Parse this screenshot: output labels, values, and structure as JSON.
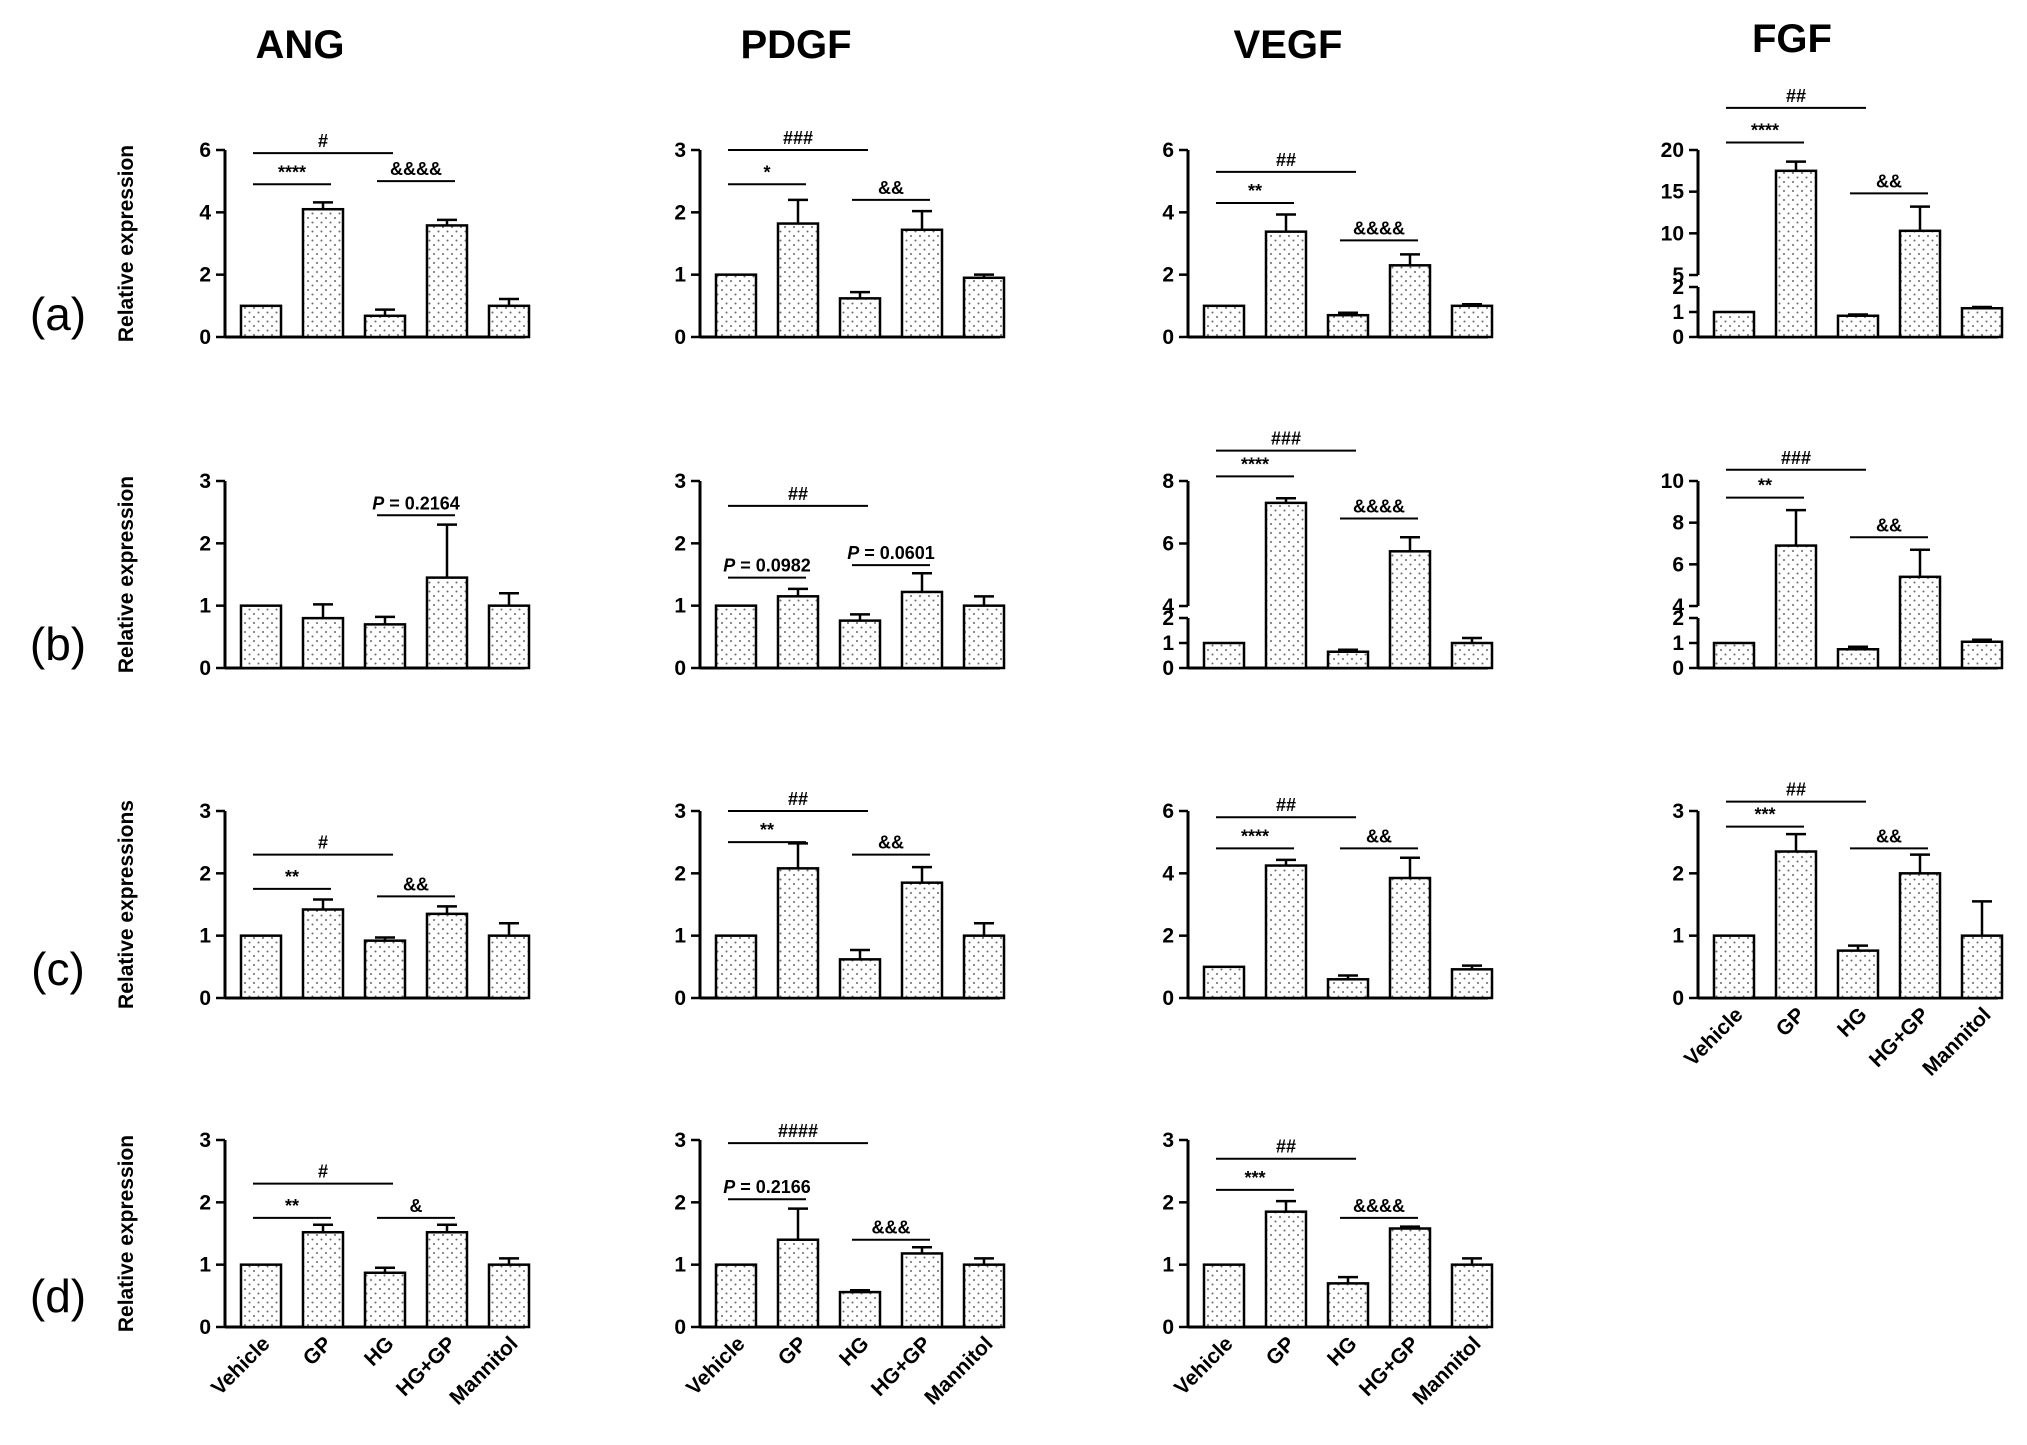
{
  "figure": {
    "column_titles": [
      "ANG",
      "PDGF",
      "VEGF",
      "FGF"
    ],
    "row_labels": [
      "(a)",
      "(b)",
      "(c)",
      "(d)"
    ],
    "colors": {
      "bar_fill": "#ffffff",
      "bar_dots": "#6b6b6b",
      "axis": "#000000"
    }
  },
  "chart_data": [
    {
      "id": "a-ang",
      "type": "bar",
      "row": 0,
      "col": 0,
      "title": "ANG",
      "ylabel": "Relative expression",
      "categories": [
        "Vehicle",
        "GP",
        "HG",
        "HG+GP",
        "Mannitol"
      ],
      "show_xticks": false,
      "values": [
        1.0,
        4.1,
        0.68,
        3.58,
        1.0
      ],
      "errors": [
        0.0,
        0.22,
        0.2,
        0.18,
        0.22
      ],
      "ylim": [
        0,
        6
      ],
      "yticks": [
        0,
        2,
        4,
        6
      ],
      "annotations": [
        {
          "from": 0,
          "to": 1,
          "y": 4.9,
          "text": "****"
        },
        {
          "from": 0,
          "to": 2,
          "y": 5.9,
          "text": "#"
        },
        {
          "from": 2,
          "to": 3,
          "y": 5.0,
          "text": "&&&&"
        }
      ]
    },
    {
      "id": "a-pdgf",
      "type": "bar",
      "row": 0,
      "col": 1,
      "title": "PDGF",
      "ylabel": "",
      "categories": [
        "Vehicle",
        "GP",
        "HG",
        "HG+GP",
        "Mannitol"
      ],
      "show_xticks": false,
      "values": [
        1.0,
        1.82,
        0.62,
        1.72,
        0.95
      ],
      "errors": [
        0.0,
        0.38,
        0.1,
        0.3,
        0.05
      ],
      "ylim": [
        0,
        3
      ],
      "yticks": [
        0,
        1,
        2,
        3
      ],
      "annotations": [
        {
          "from": 0,
          "to": 1,
          "y": 2.45,
          "text": "*"
        },
        {
          "from": 0,
          "to": 2,
          "y": 3.0,
          "text": "###"
        },
        {
          "from": 2,
          "to": 3,
          "y": 2.2,
          "text": "&&"
        }
      ]
    },
    {
      "id": "a-vegf",
      "type": "bar",
      "row": 0,
      "col": 2,
      "title": "VEGF",
      "ylabel": "",
      "categories": [
        "Vehicle",
        "GP",
        "HG",
        "HG+GP",
        "Mannitol"
      ],
      "show_xticks": false,
      "values": [
        1.0,
        3.38,
        0.7,
        2.3,
        1.0
      ],
      "errors": [
        0.0,
        0.55,
        0.08,
        0.35,
        0.05
      ],
      "ylim": [
        0,
        6
      ],
      "yticks": [
        0,
        2,
        4,
        6
      ],
      "annotations": [
        {
          "from": 0,
          "to": 1,
          "y": 4.3,
          "text": "**"
        },
        {
          "from": 0,
          "to": 2,
          "y": 5.3,
          "text": "##"
        },
        {
          "from": 2,
          "to": 3,
          "y": 3.1,
          "text": "&&&&"
        }
      ]
    },
    {
      "id": "a-fgf",
      "type": "bar",
      "row": 0,
      "col": 3,
      "title": "FGF",
      "ylabel": "",
      "categories": [
        "Vehicle",
        "GP",
        "HG",
        "HG+GP",
        "Mannitol"
      ],
      "show_xticks": false,
      "values": [
        1.0,
        17.5,
        0.85,
        10.3,
        1.15
      ],
      "errors": [
        0.0,
        1.1,
        0.05,
        2.9,
        0.05
      ],
      "ylim": [
        0,
        20
      ],
      "yticks": [
        0,
        1,
        2,
        5,
        10,
        15,
        20
      ],
      "broken_axis": {
        "lower": [
          0,
          2
        ],
        "upper": [
          5,
          20
        ]
      },
      "annotations": [
        {
          "from": 0,
          "to": 1,
          "y": 20.8,
          "text": "****"
        },
        {
          "from": 0,
          "to": 2,
          "y": 24.5,
          "text": "##"
        },
        {
          "from": 2,
          "to": 3,
          "y": 14.8,
          "text": "&&"
        }
      ]
    },
    {
      "id": "b-ang",
      "type": "bar",
      "row": 1,
      "col": 0,
      "title": "",
      "ylabel": "Relative expression",
      "categories": [
        "Vehicle",
        "GP",
        "HG",
        "HG+GP",
        "Mannitol"
      ],
      "show_xticks": false,
      "values": [
        1.0,
        0.8,
        0.7,
        1.45,
        1.0
      ],
      "errors": [
        0.0,
        0.22,
        0.12,
        0.85,
        0.2
      ],
      "ylim": [
        0,
        3
      ],
      "yticks": [
        0,
        1,
        2,
        3
      ],
      "annotations": [
        {
          "from": 2,
          "to": 3,
          "y": 2.45,
          "text": "P = 0.2164",
          "italic_p": true
        }
      ]
    },
    {
      "id": "b-pdgf",
      "type": "bar",
      "row": 1,
      "col": 1,
      "title": "",
      "ylabel": "",
      "categories": [
        "Vehicle",
        "GP",
        "HG",
        "HG+GP",
        "Mannitol"
      ],
      "show_xticks": false,
      "values": [
        1.0,
        1.15,
        0.76,
        1.22,
        1.0
      ],
      "errors": [
        0.0,
        0.12,
        0.1,
        0.3,
        0.15
      ],
      "ylim": [
        0,
        3
      ],
      "yticks": [
        0,
        1,
        2,
        3
      ],
      "annotations": [
        {
          "from": 0,
          "to": 1,
          "y": 1.45,
          "text": "P = 0.0982",
          "italic_p": true
        },
        {
          "from": 0,
          "to": 2,
          "y": 2.6,
          "text": "##"
        },
        {
          "from": 2,
          "to": 3,
          "y": 1.65,
          "text": "P = 0.0601",
          "italic_p": true
        }
      ]
    },
    {
      "id": "b-vegf",
      "type": "bar",
      "row": 1,
      "col": 2,
      "title": "",
      "ylabel": "",
      "categories": [
        "Vehicle",
        "GP",
        "HG",
        "HG+GP",
        "Mannitol"
      ],
      "show_xticks": false,
      "values": [
        1.0,
        7.3,
        0.65,
        5.75,
        1.0
      ],
      "errors": [
        0.0,
        0.15,
        0.08,
        0.45,
        0.2
      ],
      "ylim": [
        0,
        8
      ],
      "yticks": [
        0,
        1,
        2,
        4,
        6,
        8
      ],
      "broken_axis": {
        "lower": [
          0,
          2
        ],
        "upper": [
          4,
          8
        ]
      },
      "annotations": [
        {
          "from": 0,
          "to": 1,
          "y": 8.2,
          "text": "****"
        },
        {
          "from": 0,
          "to": 2,
          "y": 9.3,
          "text": "###"
        },
        {
          "from": 2,
          "to": 3,
          "y": 6.8,
          "text": "&&&&"
        }
      ]
    },
    {
      "id": "b-fgf",
      "type": "bar",
      "row": 1,
      "col": 3,
      "title": "",
      "ylabel": "",
      "categories": [
        "Vehicle",
        "GP",
        "HG",
        "HG+GP",
        "Mannitol"
      ],
      "show_xticks": false,
      "values": [
        1.0,
        6.9,
        0.75,
        5.4,
        1.05
      ],
      "errors": [
        0.0,
        1.7,
        0.1,
        1.3,
        0.08
      ],
      "ylim": [
        0,
        10
      ],
      "yticks": [
        0,
        1,
        2,
        4,
        6,
        8,
        10
      ],
      "broken_axis": {
        "lower": [
          0,
          2
        ],
        "upper": [
          4,
          10
        ]
      },
      "annotations": [
        {
          "from": 0,
          "to": 1,
          "y": 9.2,
          "text": "**"
        },
        {
          "from": 0,
          "to": 2,
          "y": 10.6,
          "text": "###"
        },
        {
          "from": 2,
          "to": 3,
          "y": 7.3,
          "text": "&&"
        }
      ]
    },
    {
      "id": "c-ang",
      "type": "bar",
      "row": 2,
      "col": 0,
      "title": "",
      "ylabel": "Relative expressions",
      "categories": [
        "Vehicle",
        "GP",
        "HG",
        "HG+GP",
        "Mannitol"
      ],
      "show_xticks": false,
      "values": [
        1.0,
        1.42,
        0.92,
        1.35,
        1.0
      ],
      "errors": [
        0.0,
        0.16,
        0.05,
        0.12,
        0.2
      ],
      "ylim": [
        0,
        3
      ],
      "yticks": [
        0,
        1,
        2,
        3
      ],
      "annotations": [
        {
          "from": 0,
          "to": 1,
          "y": 1.75,
          "text": "**"
        },
        {
          "from": 0,
          "to": 2,
          "y": 2.3,
          "text": "#"
        },
        {
          "from": 2,
          "to": 3,
          "y": 1.63,
          "text": "&&"
        }
      ]
    },
    {
      "id": "c-pdgf",
      "type": "bar",
      "row": 2,
      "col": 1,
      "title": "",
      "ylabel": "",
      "categories": [
        "Vehicle",
        "GP",
        "HG",
        "HG+GP",
        "Mannitol"
      ],
      "show_xticks": false,
      "values": [
        1.0,
        2.08,
        0.62,
        1.85,
        1.0
      ],
      "errors": [
        0.0,
        0.4,
        0.15,
        0.25,
        0.2
      ],
      "ylim": [
        0,
        3
      ],
      "yticks": [
        0,
        1,
        2,
        3
      ],
      "annotations": [
        {
          "from": 0,
          "to": 1,
          "y": 2.5,
          "text": "**"
        },
        {
          "from": 0,
          "to": 2,
          "y": 3.0,
          "text": "##"
        },
        {
          "from": 2,
          "to": 3,
          "y": 2.3,
          "text": "&&"
        }
      ]
    },
    {
      "id": "c-vegf",
      "type": "bar",
      "row": 2,
      "col": 2,
      "title": "",
      "ylabel": "",
      "categories": [
        "Vehicle",
        "GP",
        "HG",
        "HG+GP",
        "Mannitol"
      ],
      "show_xticks": false,
      "values": [
        1.0,
        4.25,
        0.6,
        3.85,
        0.92
      ],
      "errors": [
        0.0,
        0.18,
        0.12,
        0.65,
        0.12
      ],
      "ylim": [
        0,
        6
      ],
      "yticks": [
        0,
        2,
        4,
        6
      ],
      "annotations": [
        {
          "from": 0,
          "to": 1,
          "y": 4.8,
          "text": "****"
        },
        {
          "from": 0,
          "to": 2,
          "y": 5.8,
          "text": "##"
        },
        {
          "from": 2,
          "to": 3,
          "y": 4.8,
          "text": "&&"
        }
      ]
    },
    {
      "id": "c-fgf",
      "type": "bar",
      "row": 2,
      "col": 3,
      "title": "",
      "ylabel": "",
      "categories": [
        "Vehicle",
        "GP",
        "HG",
        "HG+GP",
        "Mannitol"
      ],
      "show_xticks": true,
      "values": [
        1.0,
        2.35,
        0.76,
        2.0,
        1.0
      ],
      "errors": [
        0.0,
        0.28,
        0.08,
        0.3,
        0.55
      ],
      "ylim": [
        0,
        3
      ],
      "yticks": [
        0,
        1,
        2,
        3
      ],
      "annotations": [
        {
          "from": 0,
          "to": 1,
          "y": 2.75,
          "text": "***"
        },
        {
          "from": 0,
          "to": 2,
          "y": 3.15,
          "text": "##"
        },
        {
          "from": 2,
          "to": 3,
          "y": 2.4,
          "text": "&&"
        }
      ]
    },
    {
      "id": "d-ang",
      "type": "bar",
      "row": 3,
      "col": 0,
      "title": "",
      "ylabel": "Relative expression",
      "categories": [
        "Vehicle",
        "GP",
        "HG",
        "HG+GP",
        "Mannitol"
      ],
      "show_xticks": true,
      "values": [
        1.0,
        1.52,
        0.87,
        1.52,
        1.0
      ],
      "errors": [
        0.0,
        0.12,
        0.08,
        0.12,
        0.1
      ],
      "ylim": [
        0,
        3
      ],
      "yticks": [
        0,
        1,
        2,
        3
      ],
      "annotations": [
        {
          "from": 0,
          "to": 1,
          "y": 1.75,
          "text": "**"
        },
        {
          "from": 0,
          "to": 2,
          "y": 2.3,
          "text": "#"
        },
        {
          "from": 2,
          "to": 3,
          "y": 1.75,
          "text": "&"
        }
      ]
    },
    {
      "id": "d-pdgf",
      "type": "bar",
      "row": 3,
      "col": 1,
      "title": "",
      "ylabel": "",
      "categories": [
        "Vehicle",
        "GP",
        "HG",
        "HG+GP",
        "Mannitol"
      ],
      "show_xticks": true,
      "values": [
        1.0,
        1.4,
        0.56,
        1.18,
        1.0
      ],
      "errors": [
        0.0,
        0.5,
        0.03,
        0.1,
        0.1
      ],
      "ylim": [
        0,
        3
      ],
      "yticks": [
        0,
        1,
        2,
        3
      ],
      "annotations": [
        {
          "from": 0,
          "to": 1,
          "y": 2.05,
          "text": "P = 0.2166",
          "italic_p": true
        },
        {
          "from": 0,
          "to": 2,
          "y": 2.95,
          "text": "####"
        },
        {
          "from": 2,
          "to": 3,
          "y": 1.4,
          "text": "&&&"
        }
      ]
    },
    {
      "id": "d-vegf",
      "type": "bar",
      "row": 3,
      "col": 2,
      "title": "",
      "ylabel": "",
      "categories": [
        "Vehicle",
        "GP",
        "HG",
        "HG+GP",
        "Mannitol"
      ],
      "show_xticks": true,
      "values": [
        1.0,
        1.85,
        0.7,
        1.58,
        1.0
      ],
      "errors": [
        0.0,
        0.17,
        0.1,
        0.03,
        0.1
      ],
      "ylim": [
        0,
        3
      ],
      "yticks": [
        0,
        1,
        2,
        3
      ],
      "annotations": [
        {
          "from": 0,
          "to": 1,
          "y": 2.2,
          "text": "***"
        },
        {
          "from": 0,
          "to": 2,
          "y": 2.7,
          "text": "##"
        },
        {
          "from": 2,
          "to": 3,
          "y": 1.75,
          "text": "&&&&"
        }
      ]
    }
  ]
}
